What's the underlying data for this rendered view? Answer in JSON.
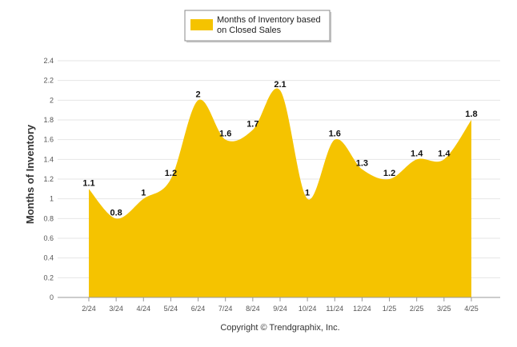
{
  "legend": {
    "line1": "Months of Inventory based",
    "line2": "on Closed Sales"
  },
  "copyright": "Copyright © Trendgraphix, Inc.",
  "colors": {
    "series_fill": "#F5C300",
    "grid": "#E6E6E6",
    "axis": "#999999"
  },
  "chart_data": {
    "type": "area",
    "categories": [
      "2/24",
      "3/24",
      "4/24",
      "5/24",
      "6/24",
      "7/24",
      "8/24",
      "9/24",
      "10/24",
      "11/24",
      "12/24",
      "1/25",
      "2/25",
      "3/25",
      "4/25"
    ],
    "series": [
      {
        "name": "Months of Inventory based on Closed Sales",
        "values": [
          1.1,
          0.8,
          1,
          1.2,
          2,
          1.6,
          1.7,
          2.1,
          1,
          1.6,
          1.3,
          1.2,
          1.4,
          1.4,
          1.8
        ],
        "labels": [
          "1.1",
          "0.8",
          "1",
          "1.2",
          "2",
          "1.6",
          "1.7",
          "2.1",
          "1",
          "1.6",
          "1.3",
          "1.2",
          "1.4",
          "1.4",
          "1.8"
        ]
      }
    ],
    "ylabel": "Months of Inventory",
    "xlabel": "",
    "ylim": [
      0,
      2.4
    ],
    "yticks": [
      "0",
      "0.2",
      "0.4",
      "0.6",
      "0.8",
      "1",
      "1.2",
      "1.4",
      "1.6",
      "1.8",
      "2",
      "2.2",
      "2.4"
    ],
    "grid": true,
    "legend_position": "top-center",
    "smooth": true
  }
}
